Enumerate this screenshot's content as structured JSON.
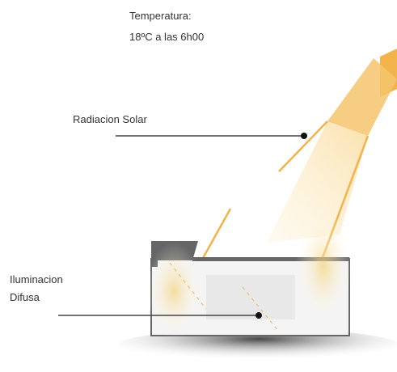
{
  "temperature": {
    "title": "Temperatura:",
    "value": "18ºC  a las 6h00"
  },
  "labels": [
    {
      "lines": [
        "Radiacion Solar"
      ]
    },
    {
      "lines": [
        "Iluminacion",
        "Difusa"
      ]
    }
  ]
}
